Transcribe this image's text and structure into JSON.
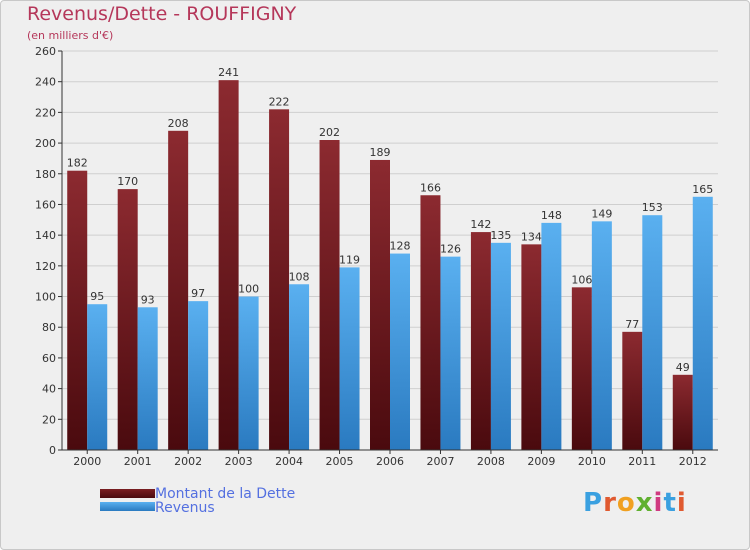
{
  "title": "Revenus/Dette - ROUFFIGNY",
  "subtitle": "(en milliers d'€)",
  "logo": {
    "text": "Proxiti",
    "colors": [
      "#3aa0e0",
      "#e05a30",
      "#f0a020",
      "#60b030",
      "#d03a80",
      "#3aa0e0",
      "#e05a30"
    ]
  },
  "colors": {
    "dette": "#7a1e22",
    "revenus": "#4aa3e8",
    "title": "#b5375a",
    "legend_text": "#5470e0"
  },
  "chart_data": {
    "type": "bar",
    "title": "Revenus/Dette - ROUFFIGNY",
    "subtitle": "(en milliers d'€)",
    "categories": [
      "2000",
      "2001",
      "2002",
      "2003",
      "2004",
      "2005",
      "2006",
      "2007",
      "2008",
      "2009",
      "2010",
      "2011",
      "2012"
    ],
    "series": [
      {
        "name": "Montant de la Dette",
        "values": [
          182,
          170,
          208,
          241,
          222,
          202,
          189,
          166,
          142,
          134,
          106,
          77,
          49
        ]
      },
      {
        "name": "Revenus",
        "values": [
          95,
          93,
          97,
          100,
          108,
          119,
          128,
          126,
          135,
          148,
          149,
          153,
          165
        ]
      }
    ],
    "ylim": [
      0,
      260
    ],
    "yticks": [
      0,
      20,
      40,
      60,
      80,
      100,
      120,
      140,
      160,
      180,
      200,
      220,
      240,
      260
    ],
    "grid": true,
    "legend": "bottom-left"
  }
}
